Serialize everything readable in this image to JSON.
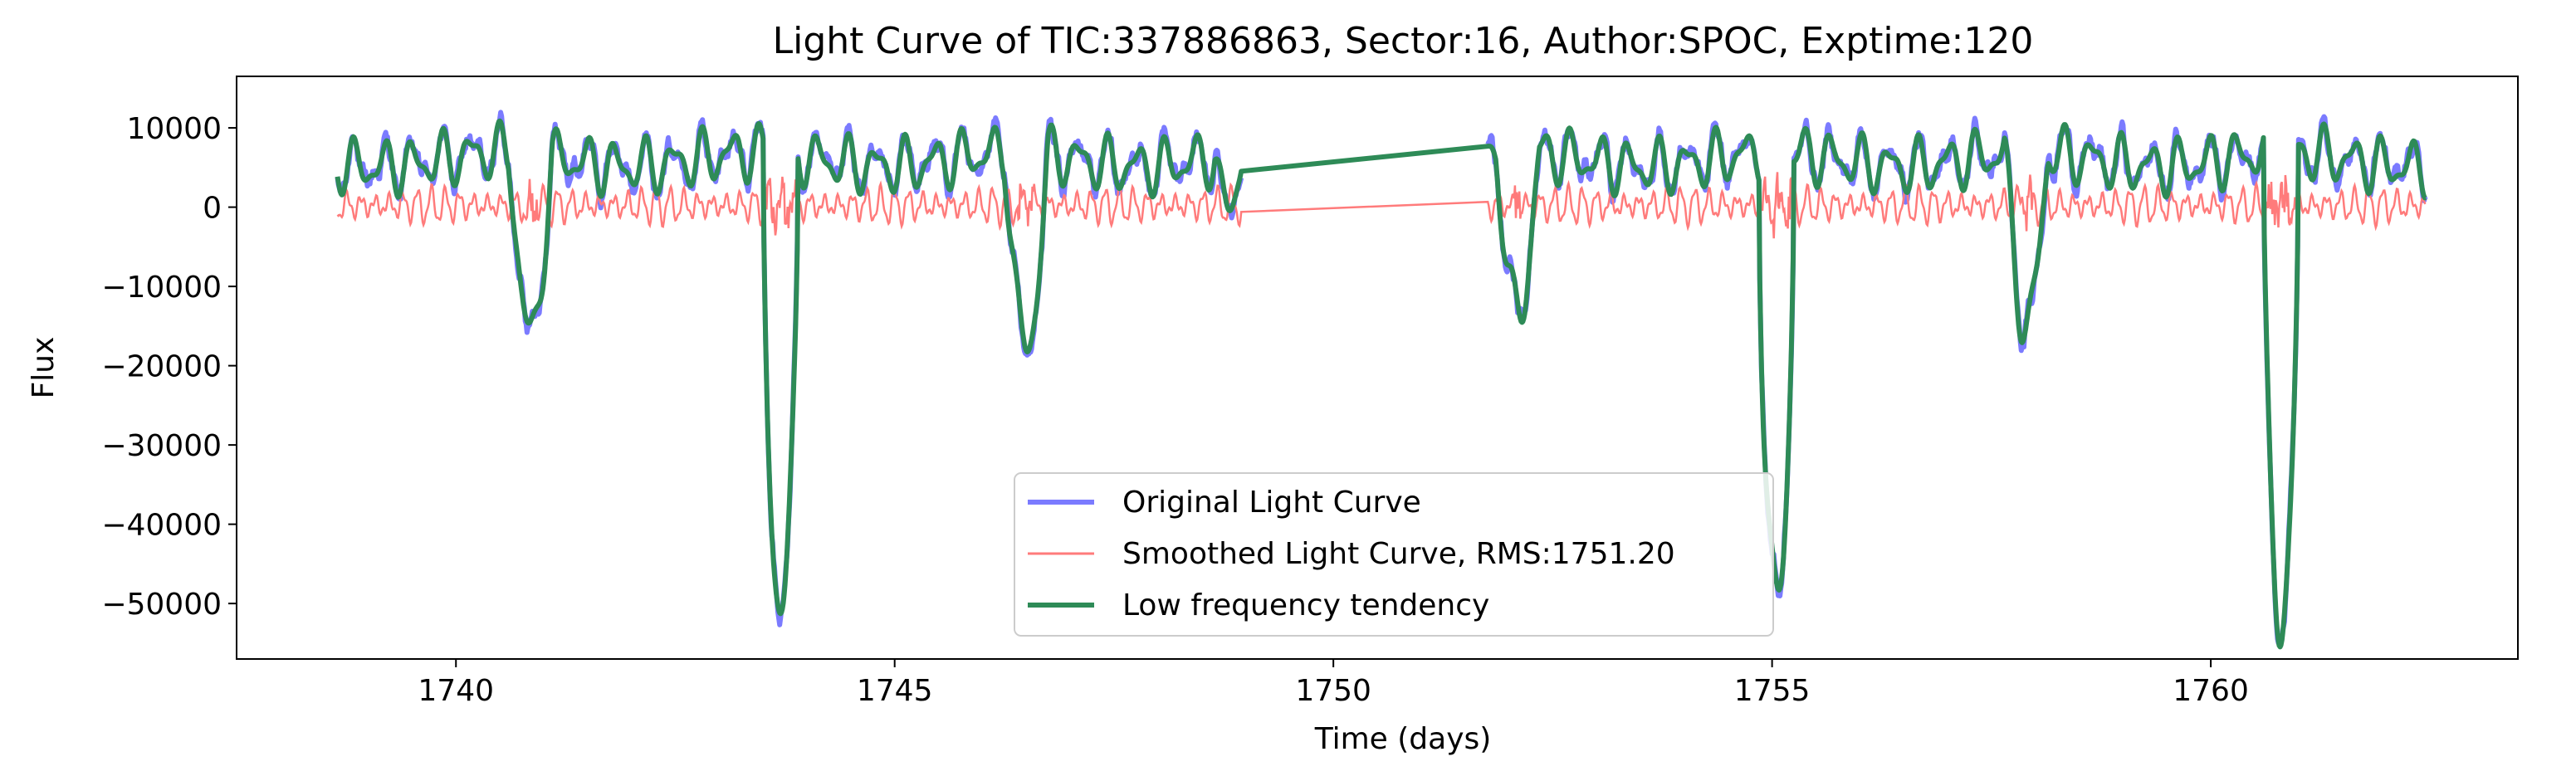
{
  "chart_data": {
    "type": "line",
    "title": "Light Curve of TIC:337886863, Sector:16, Author:SPOC, Exptime:120",
    "xlabel": "Time (days)",
    "ylabel": "Flux",
    "xlim": [
      1737.5,
      1763.5
    ],
    "ylim": [
      -57000,
      16500
    ],
    "x_ticks": [
      1740,
      1745,
      1750,
      1755,
      1760
    ],
    "x_tick_labels": [
      "1740",
      "1745",
      "1750",
      "1755",
      "1760"
    ],
    "y_ticks": [
      10000,
      0,
      -10000,
      -20000,
      -30000,
      -40000,
      -50000
    ],
    "y_tick_labels": [
      "10000",
      "0",
      "−10000",
      "−20000",
      "−30000",
      "−40000",
      "−50000"
    ],
    "grid": false,
    "legend_position": "lower center",
    "data_start": 1738.65,
    "data_end": 1762.45,
    "gap": [
      1748.95,
      1751.75
    ],
    "baseline_flux": 6000,
    "eclipses": [
      {
        "time": 1740.85,
        "kind": "secondary",
        "depth_flux": -17000
      },
      {
        "time": 1743.7,
        "kind": "primary",
        "depth_flux": -51000
      },
      {
        "time": 1746.5,
        "kind": "secondary",
        "depth_flux": -19000
      },
      {
        "time": 1752.1,
        "kind": "secondary",
        "depth_flux": -14500
      },
      {
        "time": 1755.05,
        "kind": "primary",
        "depth_flux": -50000
      },
      {
        "time": 1757.9,
        "kind": "secondary",
        "depth_flux": -16000
      },
      {
        "time": 1760.8,
        "kind": "primary",
        "depth_flux": -53000
      }
    ],
    "series": [
      {
        "name": "Original Light Curve",
        "color": "#7b7bff",
        "line_width": 3
      },
      {
        "name": "Smoothed Light Curve, RMS:1751.20",
        "color": "#ff7b7b",
        "line_width": 1.5,
        "rms": 1751.2
      },
      {
        "name": "Low frequency tendency",
        "color": "#2e8b57",
        "line_width": 3
      }
    ]
  }
}
